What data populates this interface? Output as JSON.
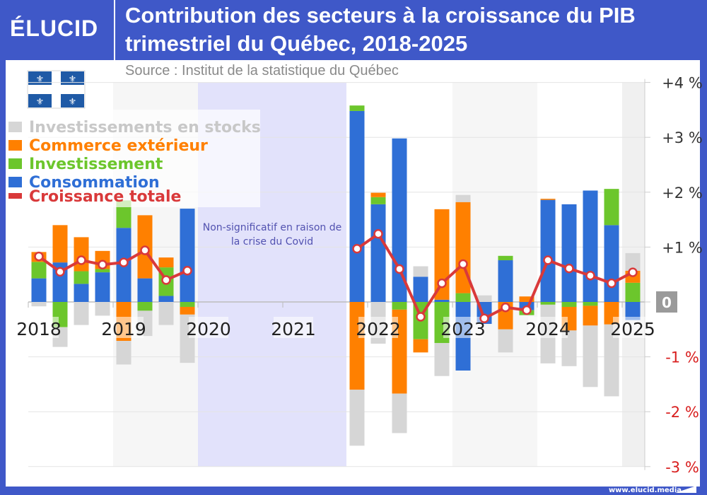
{
  "header": {
    "logo": "ÉLUCID",
    "title_line1": "Contribution des secteurs à la croissance du PIB",
    "title_line2": "trimestriel du Québec, 2018-2025",
    "source": "Source : Institut de la statistique du Québec"
  },
  "footer": {
    "site": "www.elucid.media"
  },
  "colors": {
    "frame": "#3f58c8",
    "stocks": "#d6d6d6",
    "commerce": "#ff8000",
    "investissement": "#6cc62c",
    "consommation": "#2f6fd6",
    "croissance": "#d9393a",
    "covid_band": "#e2e2fb"
  },
  "flag": "quebec-flag",
  "chart_data": {
    "type": "bar",
    "stacked": true,
    "title": "Contribution des secteurs à la croissance du PIB trimestriel du Québec, 2018-2025",
    "annotation": "Non-significatif en raison de la crise du Covid",
    "x_tick_labels": [
      "2018",
      "2019",
      "2020",
      "2021",
      "2022",
      "2023",
      "2024",
      "2025"
    ],
    "y_tick_labels": [
      "+4 %",
      "+3 %",
      "+2 %",
      "+1 %",
      "0",
      "-1 %",
      "-2 %",
      "-3 %"
    ],
    "ylim": [
      -3,
      4
    ],
    "grid": true,
    "legend_position": "top-left",
    "categories": [
      "2018T1",
      "2018T2",
      "2018T3",
      "2018T4",
      "2019T1",
      "2019T2",
      "2019T3",
      "2019T4",
      "2021T4",
      "2022T1",
      "2022T2",
      "2022T3",
      "2022T4",
      "2023T1",
      "2023T2",
      "2023T3",
      "2023T4",
      "2024T1",
      "2024T2",
      "2024T3",
      "2024T4",
      "2025T1"
    ],
    "series": [
      {
        "name": "Consommation",
        "key": "consommation",
        "values": [
          0.43,
          0.72,
          0.33,
          0.54,
          1.35,
          0.43,
          0.11,
          1.7,
          3.48,
          1.78,
          2.98,
          0.46,
          0.04,
          -1.25,
          -0.4,
          0.76,
          -0.15,
          1.86,
          1.78,
          2.03,
          1.4,
          -0.33
        ]
      },
      {
        "name": "Investissement",
        "key": "investissement",
        "values": [
          0.3,
          -0.46,
          0.23,
          0.06,
          0.5,
          -0.16,
          0.52,
          -0.09,
          0.1,
          0.13,
          -0.14,
          -0.68,
          -0.75,
          0.16,
          0.0,
          0.08,
          -0.09,
          -0.05,
          -0.09,
          -0.07,
          0.66,
          0.35
        ]
      },
      {
        "name": "Commerce extérieur",
        "key": "commerce",
        "values": [
          0.18,
          0.68,
          0.62,
          0.33,
          -0.71,
          1.15,
          0.18,
          -0.14,
          -1.6,
          0.08,
          -1.53,
          -0.24,
          1.65,
          1.66,
          0.0,
          -0.5,
          0.1,
          0.02,
          -0.43,
          -0.36,
          -0.41,
          0.22
        ]
      },
      {
        "name": "Investissements en stocks",
        "key": "stocks",
        "values": [
          -0.08,
          -0.36,
          -0.42,
          -0.25,
          -0.43,
          -0.46,
          -0.42,
          -0.88,
          -1.02,
          -0.76,
          -0.72,
          0.19,
          -0.6,
          0.13,
          0.12,
          -0.42,
          0.0,
          -1.07,
          -0.65,
          -1.12,
          -1.31,
          0.32
        ]
      }
    ],
    "line": {
      "name": "Croissance totale",
      "values": [
        0.83,
        0.55,
        0.76,
        0.68,
        0.72,
        0.94,
        0.4,
        0.57,
        0.97,
        1.24,
        0.6,
        -0.27,
        0.34,
        0.69,
        -0.3,
        -0.1,
        -0.15,
        0.76,
        0.61,
        0.48,
        0.34,
        0.54
      ]
    },
    "covid_period": [
      "2020T1",
      "2021T3"
    ]
  },
  "legend": [
    {
      "label": "Investissements en stocks",
      "key": "stocks"
    },
    {
      "label": "Commerce extérieur",
      "key": "commerce"
    },
    {
      "label": "Investissement",
      "key": "investissement"
    },
    {
      "label": "Consommation",
      "key": "consommation"
    },
    {
      "label": "Croissance totale",
      "key": "croissance"
    }
  ]
}
